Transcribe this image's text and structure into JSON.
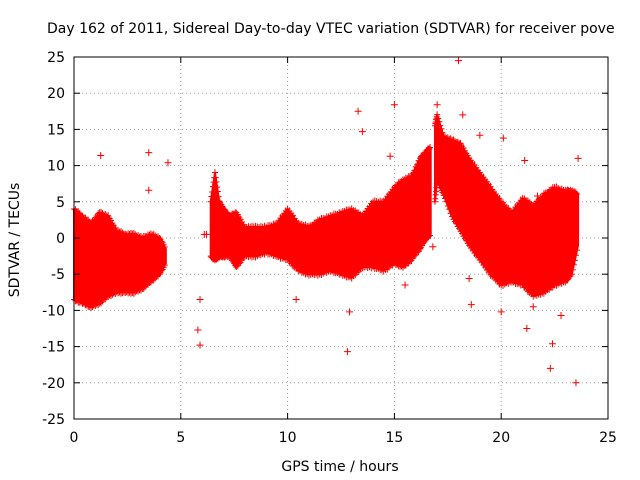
{
  "chart_data": {
    "type": "scatter",
    "title": "Day 162 of 2011, Sidereal Day-to-day VTEC variation (SDTVAR) for receiver pove",
    "xlabel": "GPS time / hours",
    "ylabel": "SDTVAR / TECUs",
    "xlim": [
      0,
      25
    ],
    "ylim": [
      -25,
      25
    ],
    "x_ticks": [
      0,
      5,
      10,
      15,
      20,
      25
    ],
    "y_ticks": [
      -25,
      -20,
      -15,
      -10,
      -5,
      0,
      5,
      10,
      15,
      20,
      25
    ],
    "grid": true,
    "series_color": "#ff0000",
    "marker": "+",
    "series": [
      {
        "name": "SDTVAR",
        "band_segments": [
          {
            "x": [
              0.0,
              0.4,
              0.8,
              1.2,
              1.6,
              2.0,
              2.4,
              2.8,
              3.2,
              3.6,
              4.0,
              4.3
            ],
            "upper": [
              4.0,
              3.0,
              2.0,
              3.5,
              3.0,
              1.0,
              0.5,
              0.5,
              0.0,
              0.5,
              0.0,
              -1.5
            ],
            "lower": [
              -8.5,
              -9.0,
              -9.5,
              -9.0,
              -8.0,
              -7.5,
              -7.5,
              -7.5,
              -7.0,
              -6.0,
              -5.0,
              -3.5
            ]
          },
          {
            "x": [
              6.4,
              6.6,
              6.8,
              7.0,
              7.3,
              7.6,
              8.0,
              8.5,
              9.0,
              9.5,
              10.0,
              10.5,
              11.0,
              11.5,
              12.0,
              12.5,
              13.0,
              13.5,
              14.0,
              14.5,
              15.0,
              15.4,
              15.8,
              16.2,
              16.5,
              16.7
            ],
            "upper": [
              5.0,
              9.0,
              5.0,
              4.0,
              3.0,
              3.5,
              1.5,
              1.5,
              1.5,
              2.0,
              4.0,
              2.0,
              1.5,
              2.5,
              3.0,
              3.5,
              4.0,
              3.0,
              5.0,
              5.0,
              7.0,
              8.0,
              8.5,
              11.0,
              12.0,
              12.5
            ],
            "lower": [
              -2.5,
              -3.0,
              -2.5,
              -2.5,
              -2.5,
              -4.0,
              -2.5,
              -2.5,
              -2.0,
              -2.5,
              -3.0,
              -4.5,
              -5.0,
              -5.0,
              -4.5,
              -5.0,
              -5.5,
              -4.0,
              -4.0,
              -4.5,
              -3.5,
              -4.0,
              -3.0,
              -1.5,
              0.0,
              0.5
            ]
          },
          {
            "x": [
              16.9,
              17.0,
              17.3,
              17.7,
              18.1,
              18.5,
              19.0,
              19.5,
              20.0,
              20.5,
              21.0,
              21.5,
              22.0,
              22.5,
              23.0,
              23.3,
              23.6
            ],
            "upper": [
              15.5,
              17.0,
              14.0,
              13.5,
              13.0,
              11.0,
              9.0,
              7.0,
              5.0,
              3.5,
              5.5,
              4.5,
              6.0,
              7.0,
              6.5,
              6.5,
              6.0
            ],
            "lower": [
              5.0,
              8.0,
              6.0,
              3.0,
              1.0,
              -1.0,
              -3.0,
              -5.0,
              -6.5,
              -6.0,
              -6.5,
              -8.0,
              -7.5,
              -6.5,
              -6.0,
              -5.0,
              -1.0
            ]
          }
        ],
        "outliers": [
          [
            1.25,
            11.4
          ],
          [
            3.5,
            11.8
          ],
          [
            3.5,
            6.6
          ],
          [
            4.4,
            10.4
          ],
          [
            5.8,
            -12.7
          ],
          [
            5.9,
            -14.8
          ],
          [
            5.9,
            -8.5
          ],
          [
            6.1,
            0.5
          ],
          [
            6.2,
            0.5
          ],
          [
            10.4,
            -8.5
          ],
          [
            12.8,
            -15.7
          ],
          [
            12.9,
            -10.2
          ],
          [
            13.3,
            17.5
          ],
          [
            13.5,
            14.7
          ],
          [
            14.8,
            11.3
          ],
          [
            15.0,
            18.4
          ],
          [
            15.5,
            -6.5
          ],
          [
            16.8,
            -1.2
          ],
          [
            17.0,
            18.4
          ],
          [
            18.0,
            24.5
          ],
          [
            18.2,
            17.0
          ],
          [
            18.5,
            -5.6
          ],
          [
            18.6,
            -9.2
          ],
          [
            19.0,
            14.2
          ],
          [
            20.0,
            -10.2
          ],
          [
            20.1,
            13.8
          ],
          [
            21.1,
            10.7
          ],
          [
            21.2,
            -12.5
          ],
          [
            21.5,
            -9.5
          ],
          [
            21.7,
            5.8
          ],
          [
            22.3,
            -18.0
          ],
          [
            22.4,
            -14.6
          ],
          [
            22.8,
            -10.7
          ],
          [
            23.5,
            -20.0
          ],
          [
            23.6,
            11.0
          ]
        ]
      }
    ]
  }
}
